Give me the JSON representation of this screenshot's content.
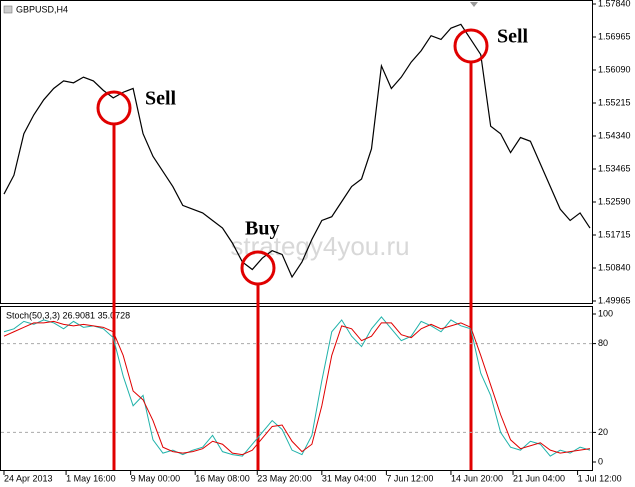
{
  "chart_data": [
    {
      "type": "line",
      "title": "GBPUSD,H4",
      "watermark": "strategy4you.ru",
      "color": "#000000",
      "annotations": [
        "Sell",
        "Buy",
        "Sell"
      ],
      "x": [
        0,
        1,
        2,
        3,
        4,
        5,
        6,
        7,
        8,
        9,
        10,
        11,
        12,
        13,
        14,
        15,
        16,
        17,
        18,
        19,
        20,
        21,
        22,
        23,
        24,
        25,
        26,
        27,
        28,
        29,
        30,
        31,
        32,
        33,
        34,
        35,
        36,
        37,
        38,
        39,
        40,
        41,
        42,
        43,
        44,
        45,
        46,
        47,
        48,
        49,
        50,
        51,
        52,
        53,
        54,
        55,
        56,
        57,
        58,
        59
      ],
      "xlim": [
        0,
        59
      ],
      "values": [
        1.528,
        1.533,
        1.544,
        1.549,
        1.553,
        1.556,
        1.558,
        1.5575,
        1.559,
        1.558,
        1.5555,
        1.5535,
        1.555,
        1.556,
        1.544,
        1.538,
        1.534,
        1.53,
        1.525,
        1.524,
        1.523,
        1.521,
        1.519,
        1.515,
        1.51,
        1.508,
        1.511,
        1.513,
        1.512,
        1.506,
        1.51,
        1.516,
        1.521,
        1.522,
        1.526,
        1.53,
        1.532,
        1.54,
        1.562,
        1.556,
        1.559,
        1.563,
        1.566,
        1.57,
        1.569,
        1.572,
        1.573,
        1.569,
        1.565,
        1.546,
        1.544,
        1.539,
        1.543,
        1.542,
        1.536,
        1.53,
        1.524,
        1.521,
        1.523,
        1.519
      ],
      "ylim": [
        1.49965,
        1.5784
      ],
      "yticks": [
        {
          "value": 1.5784,
          "label": "1.57840"
        },
        1.56965,
        {
          "value": 1.5609,
          "label": "1.56090"
        },
        1.55215,
        {
          "value": 1.5434,
          "label": "1.54340"
        },
        1.53465,
        {
          "value": 1.5259,
          "label": "1.52590"
        },
        1.51715,
        {
          "value": 1.5084,
          "label": "1.50840"
        },
        1.49965
      ]
    },
    {
      "type": "line",
      "title": "Stoch(50,3,3) 26.9081 35.0728",
      "x": [
        0,
        1,
        2,
        3,
        4,
        5,
        6,
        7,
        8,
        9,
        10,
        11,
        12,
        13,
        14,
        15,
        16,
        17,
        18,
        19,
        20,
        21,
        22,
        23,
        24,
        25,
        26,
        27,
        28,
        29,
        30,
        31,
        32,
        33,
        34,
        35,
        36,
        37,
        38,
        39,
        40,
        41,
        42,
        43,
        44,
        45,
        46,
        47,
        48,
        49,
        50,
        51,
        52,
        53,
        54,
        55,
        56,
        57,
        58,
        59
      ],
      "xlim": [
        0,
        59
      ],
      "xticks": [
        {
          "value": 0,
          "label": "24 Apr 2013"
        },
        {
          "value": 6.25,
          "label": "1 May 16:00"
        },
        {
          "value": 12.75,
          "label": "9 May 00:00"
        },
        {
          "value": 19.25,
          "label": "16 May 08:00"
        },
        {
          "value": 25.5,
          "label": "23 May 20:00"
        },
        {
          "value": 32,
          "label": "31 May 04:00"
        },
        {
          "value": 38.5,
          "label": "7 Jun 12:00"
        },
        {
          "value": 45,
          "label": "14 Jun 20:00"
        },
        {
          "value": 51.25,
          "label": "21 Jun 04:00"
        },
        {
          "value": 57.75,
          "label": "1 Jul 12:00"
        }
      ],
      "ylim": [
        0,
        100
      ],
      "yticks": [
        100,
        80,
        20,
        0
      ],
      "levels": [
        80,
        20
      ],
      "series": [
        {
          "color": "#20b2aa",
          "values": [
            88,
            90,
            95,
            93,
            96,
            94,
            90,
            95,
            91,
            92,
            90,
            84,
            58,
            38,
            45,
            15,
            6,
            8,
            5,
            8,
            10,
            18,
            7,
            5,
            4,
            12,
            20,
            28,
            22,
            8,
            5,
            18,
            55,
            88,
            96,
            85,
            78,
            90,
            98,
            90,
            82,
            85,
            95,
            92,
            88,
            96,
            92,
            90,
            60,
            45,
            20,
            10,
            8,
            14,
            12,
            4,
            8,
            6,
            10,
            8
          ]
        },
        {
          "color": "#e00000",
          "values": [
            85,
            88,
            91,
            94,
            94,
            95,
            93,
            92,
            93,
            92,
            91,
            88,
            72,
            48,
            42,
            28,
            10,
            7,
            6,
            7,
            9,
            14,
            12,
            6,
            5,
            8,
            16,
            24,
            25,
            14,
            7,
            12,
            38,
            72,
            92,
            90,
            82,
            85,
            94,
            94,
            86,
            84,
            90,
            93,
            90,
            92,
            94,
            91,
            72,
            52,
            32,
            15,
            9,
            11,
            13,
            8,
            6,
            7,
            8,
            9
          ]
        }
      ]
    }
  ]
}
